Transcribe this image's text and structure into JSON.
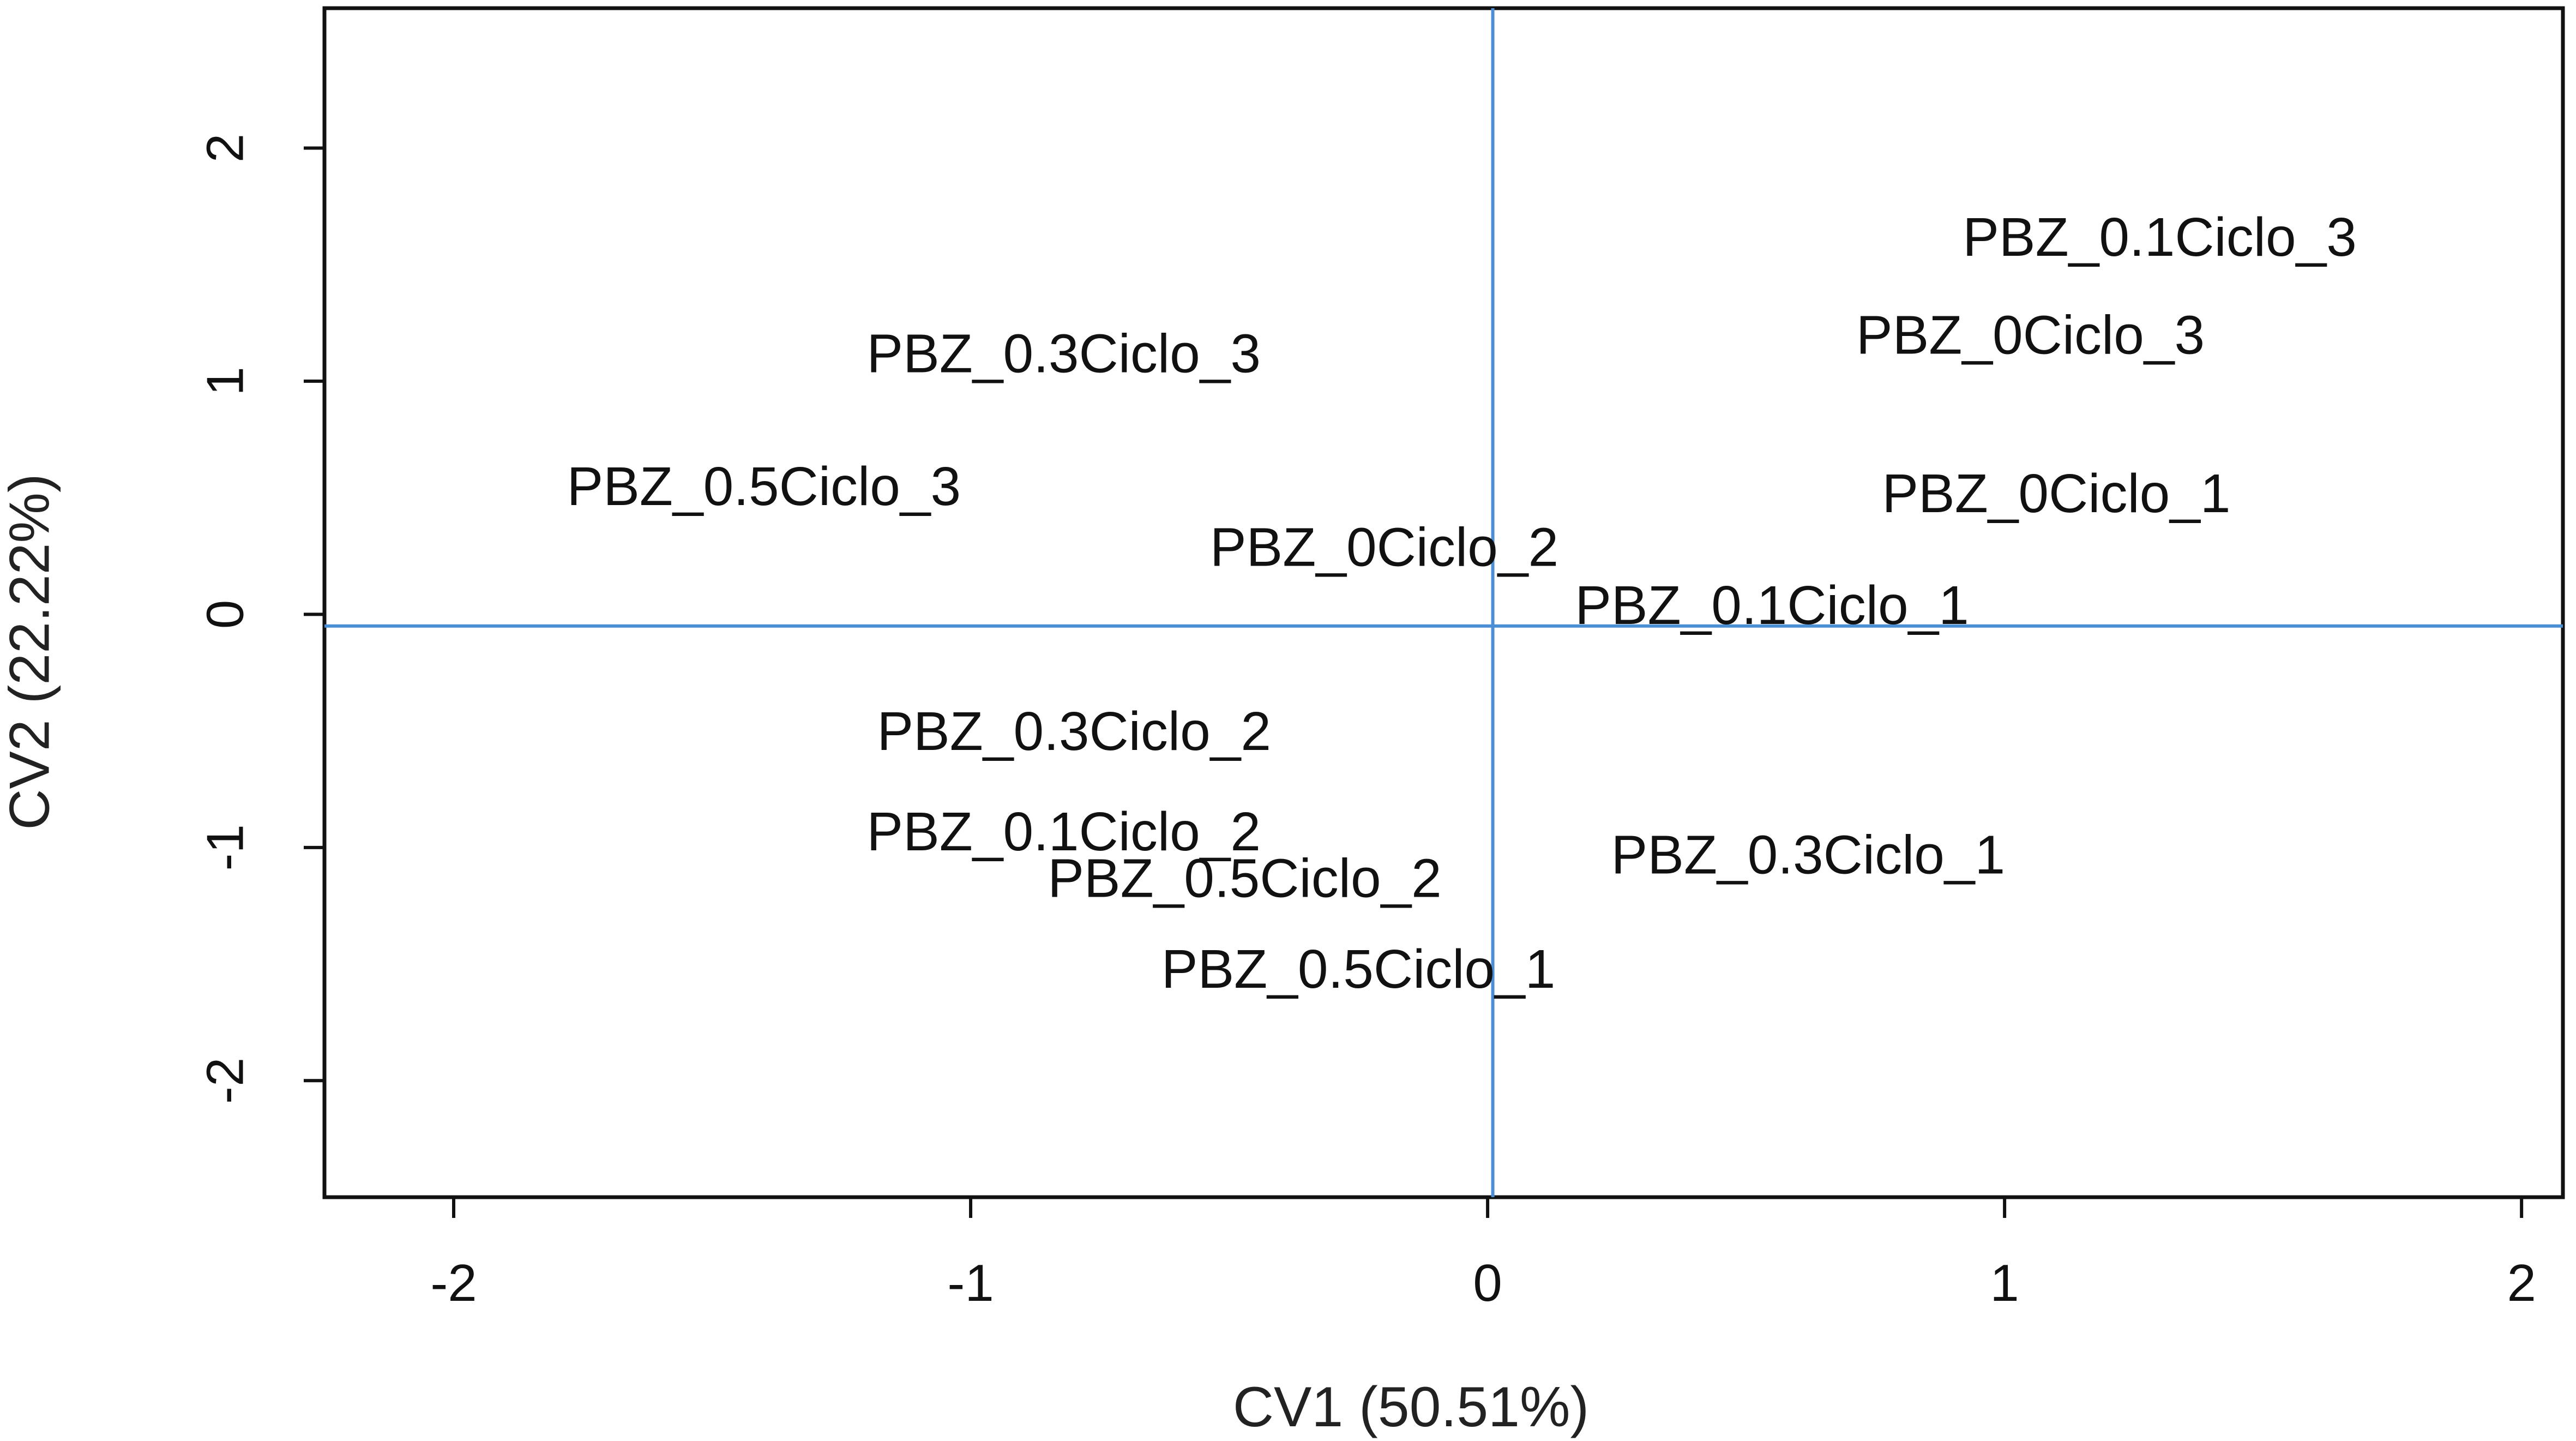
{
  "chart_data": {
    "type": "scatter",
    "title": "",
    "xlabel": "CV1 (50.51%)",
    "ylabel": "CV2 (22.22%)",
    "xlim": [
      -2.25,
      2.08
    ],
    "ylim": [
      -2.5,
      2.6
    ],
    "x_ticks": [
      -2,
      -1,
      0,
      1,
      2
    ],
    "y_ticks": [
      -2,
      -1,
      0,
      1,
      2
    ],
    "x_tick_labels": [
      "-2",
      "-1",
      "0",
      "1",
      "2"
    ],
    "y_tick_labels": [
      "-2",
      "-1",
      "0",
      "1",
      "2"
    ],
    "grid": false,
    "reference_lines": {
      "x": 0.01,
      "y": -0.05,
      "color": "#4a8fd4"
    },
    "points": [
      {
        "label": "PBZ_0.1Ciclo_3",
        "x": 1.3,
        "y": 1.6
      },
      {
        "label": "PBZ_0Ciclo_3",
        "x": 1.05,
        "y": 1.18
      },
      {
        "label": "PBZ_0.3Ciclo_3",
        "x": -0.82,
        "y": 1.1
      },
      {
        "label": "PBZ_0.5Ciclo_3",
        "x": -1.4,
        "y": 0.53
      },
      {
        "label": "PBZ_0Ciclo_1",
        "x": 1.1,
        "y": 0.5
      },
      {
        "label": "PBZ_0Ciclo_2",
        "x": -0.2,
        "y": 0.27
      },
      {
        "label": "PBZ_0.1Ciclo_1",
        "x": 0.55,
        "y": 0.02
      },
      {
        "label": "PBZ_0.3Ciclo_2",
        "x": -0.8,
        "y": -0.52
      },
      {
        "label": "PBZ_0.1Ciclo_2",
        "x": -0.82,
        "y": -0.95
      },
      {
        "label": "PBZ_0.5Ciclo_2",
        "x": -0.47,
        "y": -1.15
      },
      {
        "label": "PBZ_0.3Ciclo_1",
        "x": 0.62,
        "y": -1.05
      },
      {
        "label": "PBZ_0.5Ciclo_1",
        "x": -0.25,
        "y": -1.54
      }
    ],
    "colors": {
      "axis": "#111111",
      "reference_line": "#4a8fd4",
      "axis_title": "#222222",
      "y_axis_title": "#8a3a1a"
    }
  }
}
